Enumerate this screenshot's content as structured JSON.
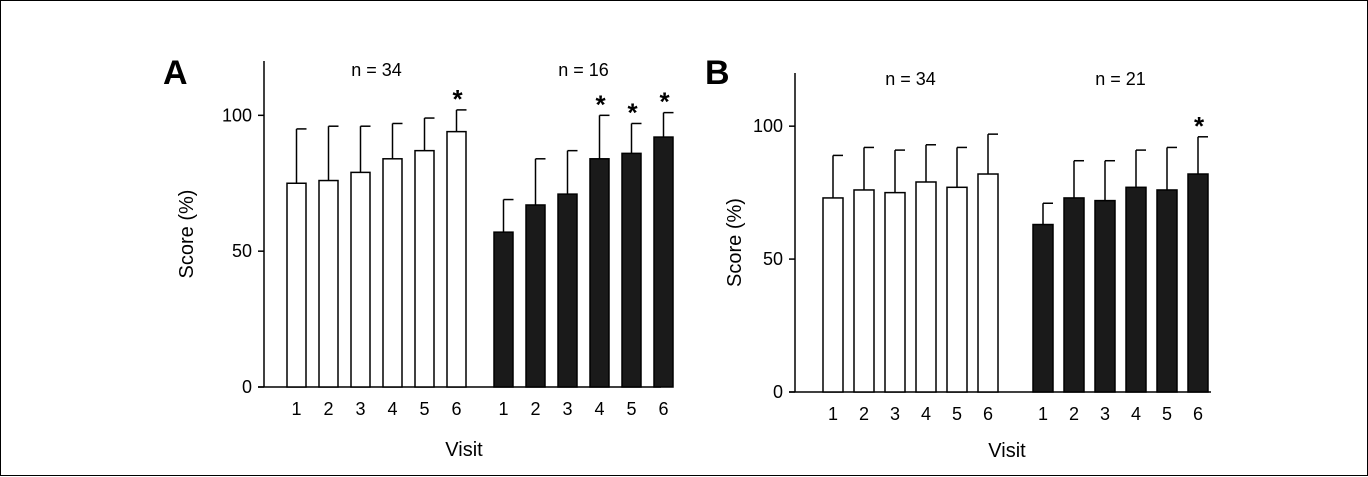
{
  "chart_data": [
    {
      "type": "bar",
      "panel": "A",
      "xlabel": "Visit",
      "ylabel": "Score (%)",
      "ylim": [
        0,
        120
      ],
      "yticks": [
        0,
        50,
        100
      ],
      "grid": false,
      "groups": [
        {
          "label": "n = 34",
          "fill": "#ffffff",
          "categories": [
            "1",
            "2",
            "3",
            "4",
            "5",
            "6"
          ],
          "values": [
            75,
            76,
            79,
            84,
            87,
            94
          ],
          "error_upper": [
            95,
            96,
            96,
            97,
            99,
            102
          ],
          "significant": [
            false,
            false,
            false,
            false,
            false,
            true
          ]
        },
        {
          "label": "n = 16",
          "fill": "#1a1a1a",
          "categories": [
            "1",
            "2",
            "3",
            "4",
            "5",
            "6"
          ],
          "values": [
            57,
            67,
            71,
            84,
            86,
            92
          ],
          "error_upper": [
            69,
            84,
            87,
            100,
            97,
            101
          ],
          "significant": [
            false,
            false,
            false,
            true,
            true,
            true
          ]
        }
      ],
      "significance_symbol": "*"
    },
    {
      "type": "bar",
      "panel": "B",
      "xlabel": "Visit",
      "ylabel": "Score (%)",
      "ylim": [
        0,
        120
      ],
      "yticks": [
        0,
        50,
        100
      ],
      "grid": false,
      "groups": [
        {
          "label": "n = 34",
          "fill": "#ffffff",
          "categories": [
            "1",
            "2",
            "3",
            "4",
            "5",
            "6"
          ],
          "values": [
            73,
            76,
            75,
            79,
            77,
            82
          ],
          "error_upper": [
            89,
            92,
            91,
            93,
            92,
            97
          ],
          "significant": [
            false,
            false,
            false,
            false,
            false,
            false
          ]
        },
        {
          "label": "n = 21",
          "fill": "#1a1a1a",
          "categories": [
            "1",
            "2",
            "3",
            "4",
            "5",
            "6"
          ],
          "values": [
            63,
            73,
            72,
            77,
            76,
            82
          ],
          "error_upper": [
            71,
            87,
            87,
            91,
            92,
            96
          ],
          "significant": [
            false,
            false,
            false,
            false,
            false,
            true
          ]
        }
      ],
      "significance_symbol": "*"
    }
  ]
}
